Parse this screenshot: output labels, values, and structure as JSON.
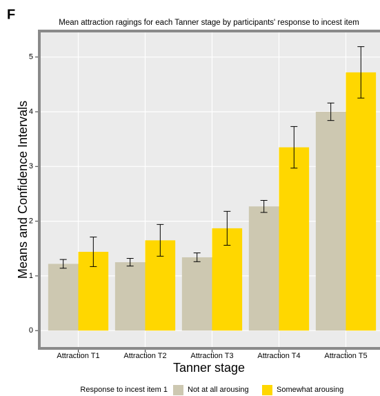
{
  "panel_label": "F",
  "chart_data": {
    "type": "bar",
    "title": "Mean attraction ragings for each Tanner stage by participants' response to incest item",
    "x_label": "Tanner stage",
    "y_label": "Means and Confidence Intervals",
    "legend_title": "Response to incest item 1",
    "categories": [
      "Attraction T1",
      "Attraction T2",
      "Attraction T3",
      "Attraction T4",
      "Attraction T5"
    ],
    "series": [
      {
        "name": "Not at all arousing",
        "color": "#cdc8b1",
        "values": [
          1.22,
          1.25,
          1.34,
          2.27,
          4.0
        ],
        "errors": [
          0.08,
          0.07,
          0.08,
          0.11,
          0.16
        ]
      },
      {
        "name": "Somewhat arousing",
        "color": "#ffd700",
        "values": [
          1.44,
          1.65,
          1.87,
          3.35,
          4.72
        ],
        "errors": [
          0.27,
          0.29,
          0.31,
          0.38,
          0.47
        ]
      }
    ],
    "ylim": [
      -0.3,
      5.45
    ],
    "yticks": [
      0,
      1,
      2,
      3,
      4,
      5
    ],
    "grid": true
  }
}
